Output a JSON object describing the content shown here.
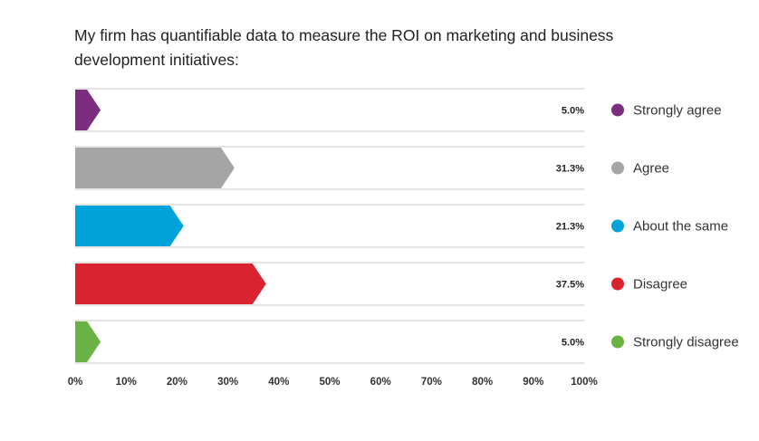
{
  "chart_data": {
    "type": "bar",
    "orientation": "horizontal",
    "title": "My firm has quantifiable data to measure the ROI on marketing and business development initiatives:",
    "categories": [
      "Strongly agree",
      "Agree",
      "About the same",
      "Disagree",
      "Strongly disagree"
    ],
    "values": [
      5.0,
      31.3,
      21.3,
      37.5,
      5.0
    ],
    "value_labels": [
      "5.0%",
      "31.3%",
      "21.3%",
      "37.5%",
      "5.0%"
    ],
    "colors": [
      "#7b2d7e",
      "#a5a5a5",
      "#00a3d9",
      "#d9232e",
      "#6bb245"
    ],
    "xlim": [
      0,
      100
    ],
    "x_ticks": [
      "0%",
      "10%",
      "20%",
      "30%",
      "40%",
      "50%",
      "60%",
      "70%",
      "80%",
      "90%",
      "100%"
    ],
    "xlabel": "",
    "ylabel": "",
    "legend_position": "right",
    "grid": false
  }
}
